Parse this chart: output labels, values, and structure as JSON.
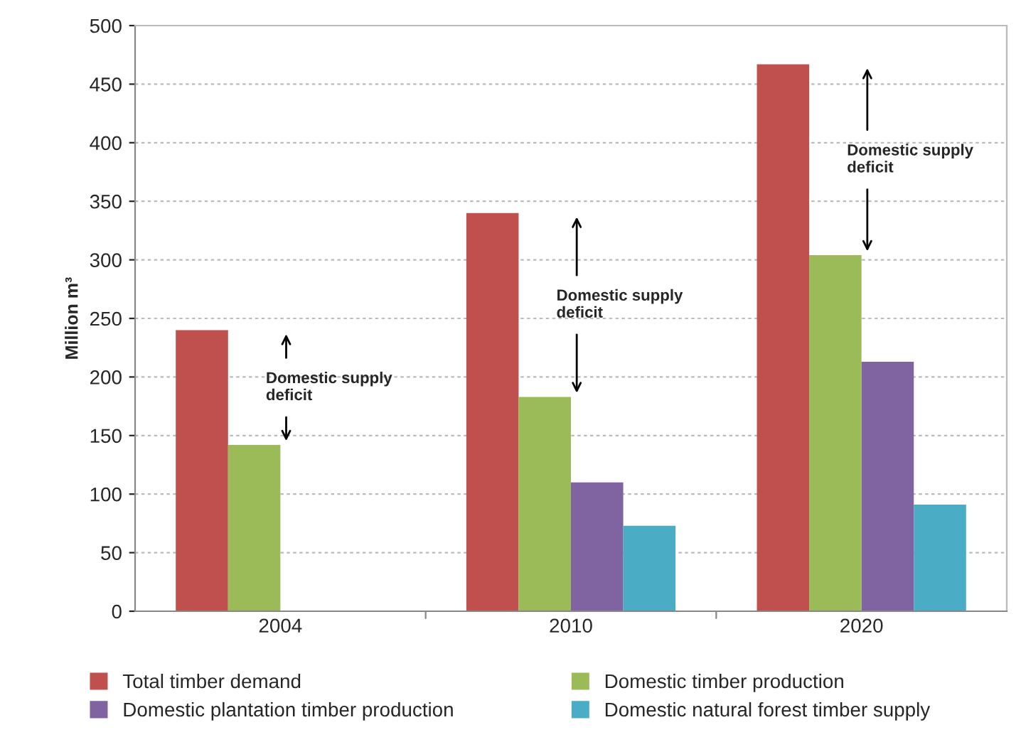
{
  "chart_data": {
    "type": "bar",
    "ylabel": "Million m³",
    "categories": [
      "2004",
      "2010",
      "2020"
    ],
    "series": [
      {
        "name": "Total timber demand",
        "color": "#c0504d",
        "values": [
          240,
          340,
          467
        ]
      },
      {
        "name": "Domestic timber production",
        "color": "#9bbb59",
        "values": [
          142,
          183,
          304
        ]
      },
      {
        "name": "Domestic plantation timber production",
        "color": "#8064a2",
        "values": [
          null,
          110,
          213
        ]
      },
      {
        "name": "Domestic natural forest timber supply",
        "color": "#4bacc6",
        "values": [
          null,
          73,
          91
        ]
      }
    ],
    "ylim": [
      0,
      500
    ],
    "yticks": [
      0,
      50,
      100,
      150,
      200,
      250,
      300,
      350,
      400,
      450,
      500
    ],
    "grid": "y",
    "legend": "bottom",
    "annotations": [
      "Domestic supply\ndeficit",
      "Domestic supply\ndeficit",
      "Domestic supply\ndeficit"
    ]
  }
}
